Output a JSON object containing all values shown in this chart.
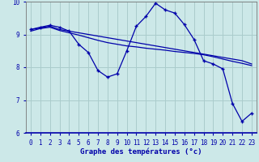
{
  "background_color": "#cce8e8",
  "grid_color": "#aacccc",
  "line_color": "#0000aa",
  "xlabel": "Graphe des températures (°c)",
  "xlim": [
    -0.5,
    23.5
  ],
  "ylim": [
    6,
    10
  ],
  "yticks": [
    6,
    7,
    8,
    9,
    10
  ],
  "xticks": [
    0,
    1,
    2,
    3,
    4,
    5,
    6,
    7,
    8,
    9,
    10,
    11,
    12,
    13,
    14,
    15,
    16,
    17,
    18,
    19,
    20,
    21,
    22,
    23
  ],
  "series1_x": [
    0,
    1,
    2,
    3,
    4,
    5,
    6,
    7,
    8,
    9,
    10,
    11,
    12,
    13,
    14,
    15,
    16,
    17,
    18,
    19,
    20,
    21,
    22,
    23
  ],
  "series1_y": [
    9.15,
    9.2,
    9.25,
    9.15,
    9.1,
    9.05,
    9.0,
    8.95,
    8.9,
    8.85,
    8.8,
    8.75,
    8.7,
    8.65,
    8.6,
    8.55,
    8.5,
    8.45,
    8.4,
    8.35,
    8.3,
    8.25,
    8.2,
    8.1
  ],
  "series2_x": [
    0,
    1,
    2,
    3,
    4,
    5,
    6,
    7,
    8,
    9,
    10,
    11,
    12,
    13,
    14,
    15,
    16,
    17,
    18,
    19,
    20,
    21,
    22,
    23
  ],
  "series2_y": [
    9.1,
    9.18,
    9.22,
    9.12,
    9.05,
    8.98,
    8.9,
    8.82,
    8.75,
    8.7,
    8.65,
    8.62,
    8.58,
    8.55,
    8.52,
    8.48,
    8.45,
    8.42,
    8.38,
    8.32,
    8.25,
    8.18,
    8.12,
    8.05
  ],
  "series3_x": [
    0,
    1,
    2,
    3,
    4,
    5,
    6,
    7,
    8,
    9,
    10,
    11,
    12,
    13,
    14,
    15,
    16,
    17,
    18,
    19,
    20,
    21,
    22,
    23
  ],
  "series3_y": [
    9.15,
    9.22,
    9.28,
    9.22,
    9.1,
    8.7,
    8.45,
    7.9,
    7.7,
    7.8,
    8.5,
    9.25,
    9.55,
    9.95,
    9.75,
    9.65,
    9.3,
    8.85,
    8.2,
    8.1,
    7.95,
    6.9,
    6.35,
    6.6
  ]
}
